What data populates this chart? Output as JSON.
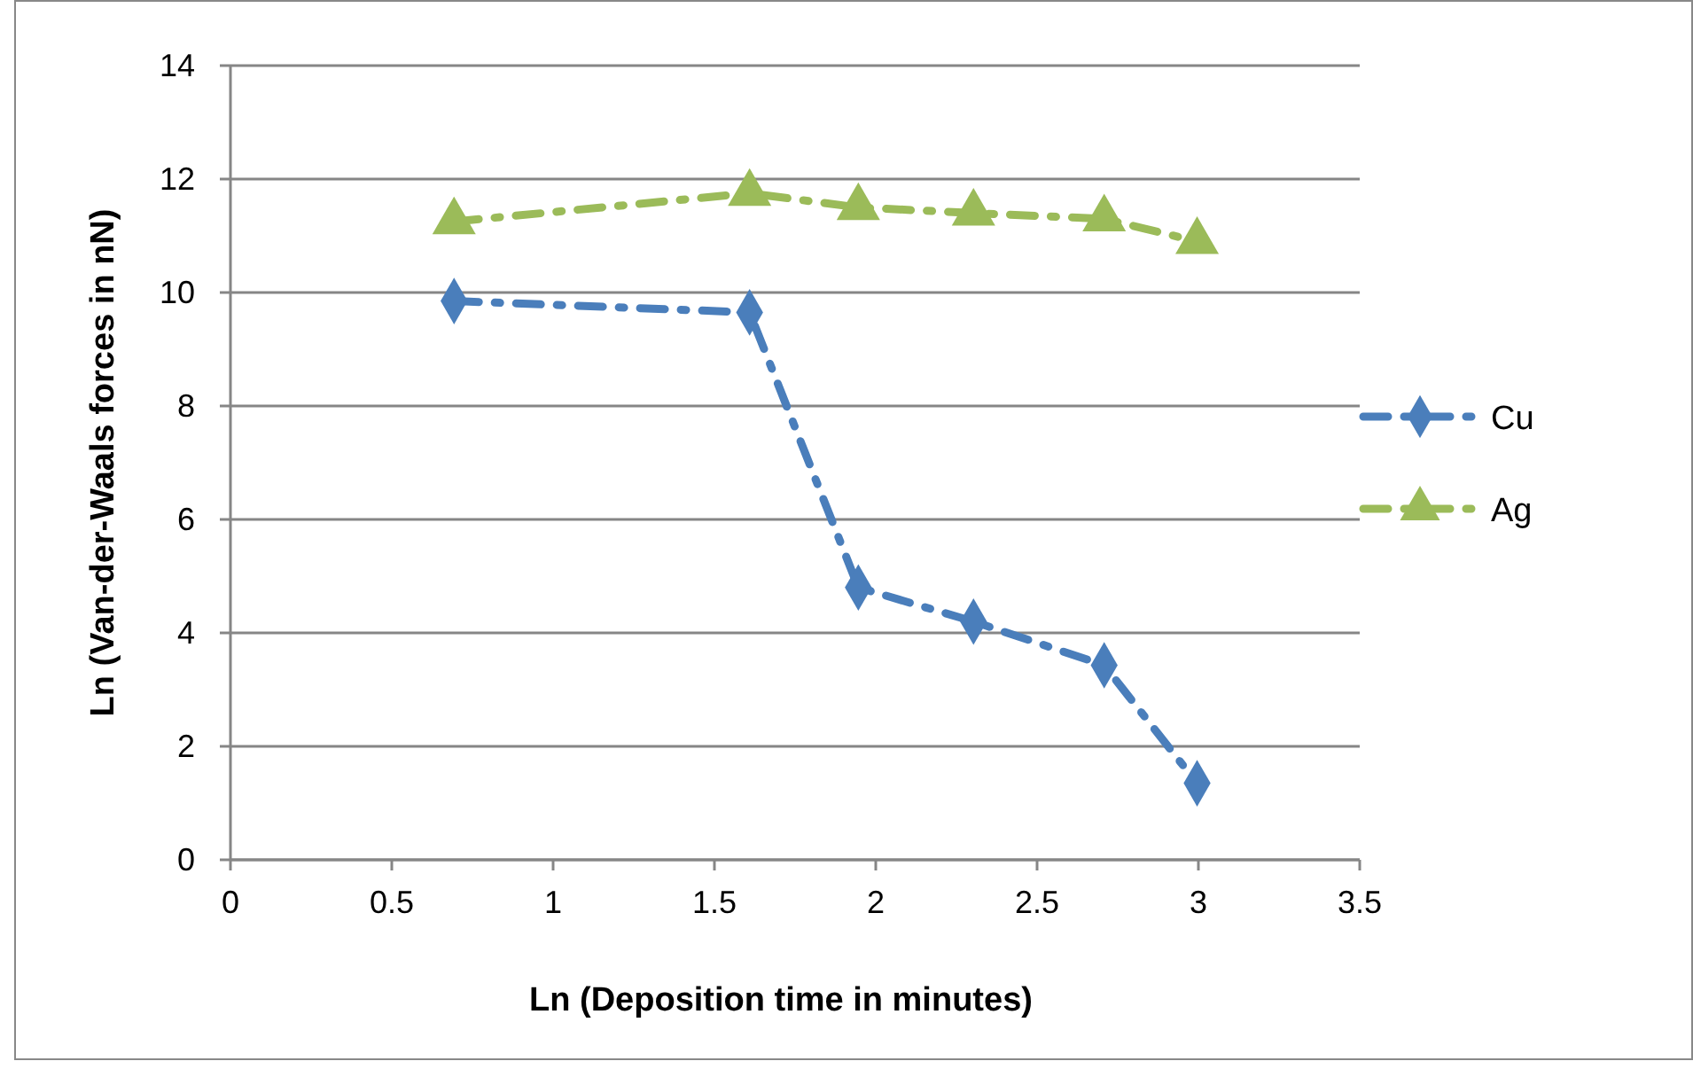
{
  "chart_data": {
    "type": "line",
    "xlabel": "Ln (Deposition time in minutes)",
    "ylabel": "Ln (Van-der-Waals forces in nN)",
    "x": [
      0.693,
      1.609,
      1.946,
      2.303,
      2.708,
      2.996
    ],
    "series": [
      {
        "name": "Cu",
        "color": "#4a7ebb",
        "marker": "diamond",
        "values": [
          9.85,
          9.65,
          4.8,
          4.2,
          3.43,
          1.35
        ]
      },
      {
        "name": "Ag",
        "color": "#9bbb59",
        "marker": "triangle",
        "values": [
          11.25,
          11.75,
          11.5,
          11.4,
          11.3,
          10.9
        ]
      }
    ],
    "xlim": [
      0,
      3.5
    ],
    "xticks": [
      0,
      0.5,
      1,
      1.5,
      2,
      2.5,
      3,
      3.5
    ],
    "ylim": [
      0,
      14
    ],
    "yticks": [
      0,
      2,
      4,
      6,
      8,
      10,
      12,
      14
    ],
    "grid": "y",
    "legend": "right",
    "line_style": "dashed"
  }
}
